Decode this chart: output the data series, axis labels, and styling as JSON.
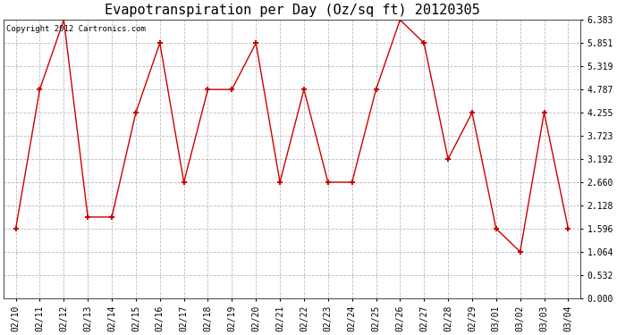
{
  "title": "Evapotranspiration per Day (Oz/sq ft) 20120305",
  "copyright_text": "Copyright 2012 Cartronics.com",
  "dates": [
    "02/10",
    "02/11",
    "02/12",
    "02/13",
    "02/14",
    "02/15",
    "02/16",
    "02/17",
    "02/18",
    "02/19",
    "02/20",
    "02/21",
    "02/22",
    "02/23",
    "02/24",
    "02/25",
    "02/26",
    "02/27",
    "02/28",
    "02/29",
    "03/01",
    "03/02",
    "03/03",
    "03/04"
  ],
  "values": [
    1.596,
    4.787,
    6.383,
    1.862,
    1.862,
    4.255,
    5.851,
    2.66,
    4.787,
    4.787,
    5.851,
    2.66,
    4.787,
    2.66,
    2.66,
    4.787,
    6.383,
    5.851,
    3.192,
    4.255,
    1.596,
    1.064,
    4.255,
    1.596
  ],
  "line_color": "#cc0000",
  "marker": "+",
  "marker_size": 5,
  "marker_linewidth": 1.5,
  "line_width": 1.0,
  "ylim_min": 0.0,
  "ylim_max": 6.383,
  "yticks": [
    0.0,
    0.532,
    1.064,
    1.596,
    2.128,
    2.66,
    3.192,
    3.723,
    4.255,
    4.787,
    5.319,
    5.851,
    6.383
  ],
  "background_color": "#ffffff",
  "grid_color": "#bbbbbb",
  "title_fontsize": 11,
  "copyright_fontsize": 6.5,
  "tick_fontsize": 7,
  "fig_width": 6.9,
  "fig_height": 3.75,
  "dpi": 100
}
